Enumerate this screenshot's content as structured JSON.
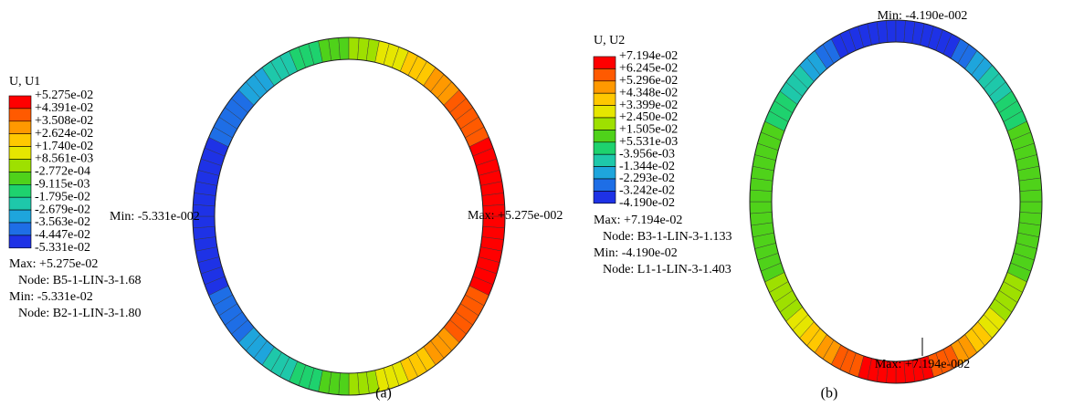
{
  "panels": [
    {
      "legend_title": "U, U1",
      "legend_values": [
        "+5.275e-02",
        "+4.391e-02",
        "+3.508e-02",
        "+2.624e-02",
        "+1.740e-02",
        "+8.561e-03",
        "-2.772e-04",
        "-9.115e-03",
        "-1.795e-02",
        "-2.679e-02",
        "-3.563e-02",
        "-4.447e-02",
        "-5.331e-02"
      ],
      "max_label": "Max: +5.275e-02",
      "max_node": "Node: B5-1-LIN-3-1.68",
      "min_label": "Min: -5.331e-02",
      "min_node": "Node: B2-1-LIN-3-1.80",
      "ring_min": "Min: -5.331e-002",
      "ring_max": "Max: +5.275e-002",
      "caption": "(a)"
    },
    {
      "legend_title": "U, U2",
      "legend_values": [
        "+7.194e-02",
        "+6.245e-02",
        "+5.296e-02",
        "+4.348e-02",
        "+3.399e-02",
        "+2.450e-02",
        "+1.505e-02",
        "+5.531e-03",
        "-3.956e-03",
        "-1.344e-02",
        "-2.293e-02",
        "-3.242e-02",
        "-4.190e-02"
      ],
      "max_label": "Max: +7.194e-02",
      "max_node": "Node: B3-1-LIN-3-1.133",
      "min_label": "Min: -4.190e-02",
      "min_node": "Node: L1-1-LIN-3-1.403",
      "ring_min": "Min: -4.190e-002",
      "ring_max": "Max: +7.194e-002",
      "caption": "(b)"
    }
  ]
}
